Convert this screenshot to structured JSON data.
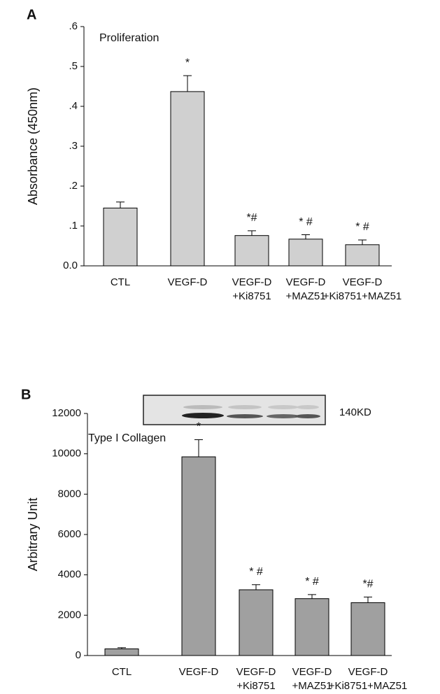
{
  "chart_data": [
    {
      "type": "bar",
      "panel": "A",
      "subtitle": "Proliferation",
      "ylabel": "Absorbance (450nm)",
      "categories": [
        "CTL",
        "VEGF-D",
        "VEGF-D\n+Ki8751",
        "VEGF-D\n+MAZ51",
        "VEGF-D\n+Ki8751+MAZ51"
      ],
      "values": [
        0.145,
        0.437,
        0.076,
        0.067,
        0.053
      ],
      "errors": [
        0.015,
        0.04,
        0.012,
        0.011,
        0.012
      ],
      "annotations": [
        null,
        "*",
        "*#",
        "* #",
        "* #"
      ],
      "color": "#d0d0d0",
      "ylim": [
        0,
        0.6
      ],
      "yticks": [
        {
          "value": 0,
          "label": "0.0"
        },
        {
          "value": 0.1,
          "label": ".1"
        },
        {
          "value": 0.2,
          "label": ".2"
        },
        {
          "value": 0.3,
          "label": ".3"
        },
        {
          "value": 0.4,
          "label": ".4"
        },
        {
          "value": 0.5,
          "label": ".5"
        },
        {
          "value": 0.6,
          "label": ".6"
        }
      ]
    },
    {
      "type": "bar",
      "panel": "B",
      "subtitle": "Type I Collagen",
      "ylabel": "Arbitrary Unit",
      "blot_label": "140KD",
      "categories": [
        "CTL",
        "VEGF-D",
        "VEGF-D\n+Ki8751",
        "VEGF-D\n+MAZ51",
        "VEGF-D\n+Ki8751+MAZ51"
      ],
      "values": [
        330,
        9850,
        3260,
        2820,
        2620
      ],
      "errors": [
        60,
        850,
        250,
        200,
        280
      ],
      "annotations": [
        null,
        "*",
        "* #",
        "* #",
        "*#"
      ],
      "color": "#a0a0a0",
      "ylim": [
        0,
        12000
      ],
      "yticks": [
        0,
        2000,
        4000,
        6000,
        8000,
        10000,
        12000
      ]
    }
  ]
}
